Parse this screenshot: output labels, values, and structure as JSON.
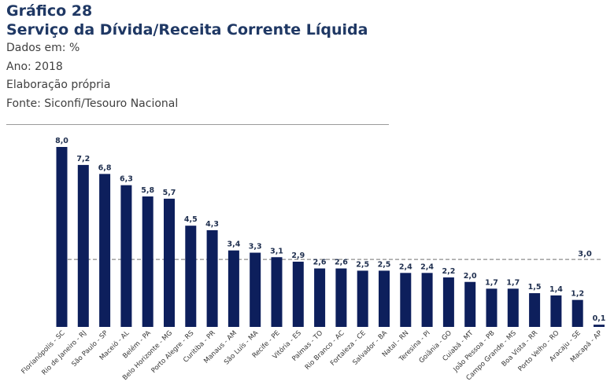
{
  "header": {
    "title": "Gráfico 28",
    "subtitle": "Serviço da Dívida/Receita Corrente Líquida",
    "meta": [
      "Dados em: %",
      "Ano: 2018",
      "Elaboração própria",
      "Fonte: Siconfi/Tesouro Nacional"
    ]
  },
  "chart_data": {
    "type": "bar",
    "categories": [
      "Florianópolis - SC",
      "Rio de Janeiro - RJ",
      "São Paulo - SP",
      "Maceió - AL",
      "Belém - PA",
      "Belo Horizonte - MG",
      "Porto Alegre - RS",
      "Curitiba - PR",
      "Manaus - AM",
      "São Luís - MA",
      "Recife - PE",
      "Vitória - ES",
      "Palmas - TO",
      "Rio Branco - AC",
      "Fortaleza - CE",
      "Salvador - BA",
      "Natal - RN",
      "Teresina - PI",
      "Goiânia - GO",
      "Cuiabá - MT",
      "João Pessoa - PB",
      "Campo Grande - MS",
      "Boa Vista - RR",
      "Porto Velho - RO",
      "Aracaju - SE",
      "Macapá - AP"
    ],
    "values": [
      8.0,
      7.2,
      6.8,
      6.3,
      5.8,
      5.7,
      4.5,
      4.3,
      3.4,
      3.3,
      3.1,
      2.9,
      2.6,
      2.6,
      2.5,
      2.5,
      2.4,
      2.4,
      2.2,
      2.0,
      1.7,
      1.7,
      1.5,
      1.4,
      1.2,
      0.1
    ],
    "value_labels": [
      "8,0",
      "7,2",
      "6,8",
      "6,3",
      "5,8",
      "5,7",
      "4,5",
      "4,3",
      "3,4",
      "3,3",
      "3,1",
      "2,9",
      "2,6",
      "2,6",
      "2,5",
      "2,5",
      "2,4",
      "2,4",
      "2,2",
      "2,0",
      "1,7",
      "1,7",
      "1,5",
      "1,4",
      "1,2",
      "0,1"
    ],
    "reference_line": {
      "value": 3.0,
      "label": "3,0",
      "style": "dashed"
    },
    "ylim": [
      0,
      8.0
    ],
    "grid": false,
    "colors": {
      "bar": "#0d1f5c",
      "reference": "#8c8c8c",
      "label": "#1f2f4f"
    }
  }
}
